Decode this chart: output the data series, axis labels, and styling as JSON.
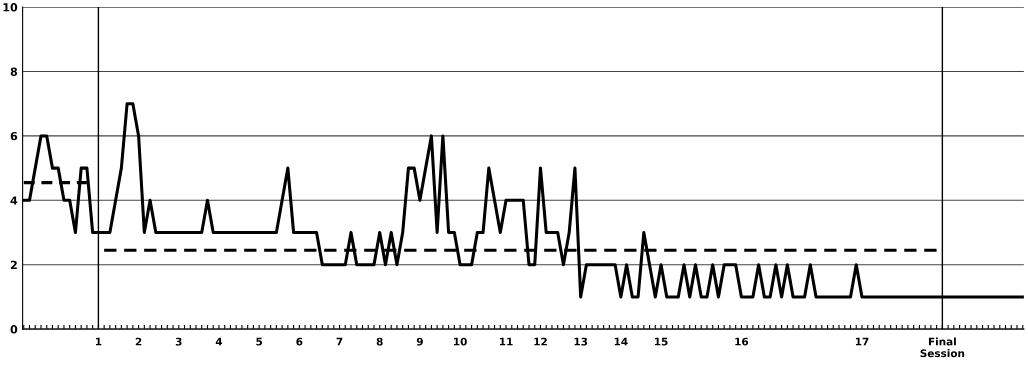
{
  "chart_data": {
    "type": "line",
    "categories": [
      null,
      null,
      null,
      null,
      null,
      null,
      null,
      null,
      null,
      null,
      null,
      null,
      null,
      "1",
      null,
      null,
      null,
      null,
      null,
      null,
      "2",
      null,
      null,
      null,
      null,
      null,
      null,
      "3",
      null,
      null,
      null,
      null,
      null,
      null,
      "4",
      null,
      null,
      null,
      null,
      null,
      null,
      "5",
      null,
      null,
      null,
      null,
      null,
      null,
      "6",
      null,
      null,
      null,
      null,
      null,
      null,
      "7",
      null,
      null,
      null,
      null,
      null,
      null,
      "8",
      null,
      null,
      null,
      null,
      null,
      null,
      "9",
      null,
      null,
      null,
      null,
      null,
      null,
      "10",
      null,
      null,
      null,
      null,
      null,
      null,
      null,
      "11",
      null,
      null,
      null,
      null,
      null,
      "12",
      null,
      null,
      null,
      null,
      null,
      null,
      "13",
      null,
      null,
      null,
      null,
      null,
      null,
      "14",
      null,
      null,
      null,
      null,
      null,
      null,
      "15",
      null,
      null,
      null,
      null,
      null,
      null,
      null,
      null,
      null,
      null,
      null,
      null,
      null,
      "16",
      null,
      null,
      null,
      null,
      null,
      null,
      null,
      null,
      null,
      null,
      null,
      null,
      null,
      null,
      null,
      null,
      null,
      null,
      null,
      null,
      "17",
      null,
      null,
      null,
      null,
      null,
      null,
      null,
      null,
      null,
      null,
      null,
      null,
      null,
      "Final\nSession",
      null,
      null,
      null,
      null,
      null,
      null,
      null,
      null,
      null,
      null,
      null,
      null,
      null,
      null
    ],
    "series": [
      {
        "color": "#000000",
        "line_style": "solid",
        "values": [
          4,
          4,
          5,
          6,
          6,
          5,
          5,
          4,
          4,
          3,
          5,
          5,
          3,
          3,
          3,
          3,
          4,
          5,
          7,
          7,
          6,
          3,
          4,
          3,
          3,
          3,
          3,
          3,
          3,
          3,
          3,
          3,
          4,
          3,
          3,
          3,
          3,
          3,
          3,
          3,
          3,
          3,
          3,
          3,
          3,
          4,
          5,
          3,
          3,
          3,
          3,
          3,
          2,
          2,
          2,
          2,
          2,
          3,
          2,
          2,
          2,
          2,
          3,
          2,
          3,
          2,
          3,
          5,
          5,
          4,
          5,
          6,
          3,
          6,
          3,
          3,
          2,
          2,
          2,
          3,
          3,
          5,
          4,
          3,
          4,
          4,
          4,
          4,
          2,
          2,
          5,
          3,
          3,
          3,
          2,
          3,
          5,
          1,
          2,
          2,
          2,
          2,
          2,
          2,
          1,
          2,
          1,
          1,
          3,
          2,
          1,
          2,
          1,
          1,
          1,
          2,
          1,
          2,
          1,
          1,
          2,
          1,
          2,
          2,
          2,
          1,
          1,
          1,
          2,
          1,
          1,
          2,
          1,
          2,
          1,
          1,
          1,
          2,
          1,
          1,
          1,
          1,
          1,
          1,
          1,
          2,
          1,
          1,
          1,
          1,
          1,
          1,
          1,
          1,
          1,
          1,
          1,
          1,
          1,
          1,
          1,
          1,
          1,
          1,
          1,
          1,
          1,
          1,
          1,
          1,
          1,
          1,
          1,
          1,
          1
        ]
      },
      {
        "color": "#000000",
        "line_style": "dashed",
        "values": [
          4.55,
          4.55,
          4.55,
          4.55,
          4.55,
          4.55,
          4.55,
          4.55,
          4.55,
          4.55,
          4.55,
          4.55,
          null,
          null,
          null,
          null,
          null,
          null,
          null,
          null,
          null,
          null,
          null,
          null,
          null,
          null,
          null,
          null,
          null,
          null,
          null,
          null,
          null,
          null,
          null,
          null,
          null,
          null,
          null,
          null,
          null,
          null,
          null,
          null,
          null,
          null,
          null,
          null,
          null,
          null,
          null,
          null,
          null,
          null,
          null,
          null,
          null,
          null,
          null,
          null,
          null,
          null,
          null,
          null,
          null,
          null,
          null,
          null,
          null,
          null,
          null,
          null,
          null,
          null,
          null,
          null,
          null,
          null,
          null,
          null,
          null,
          null,
          null,
          null,
          null,
          null,
          null,
          null,
          null,
          null,
          null,
          null,
          null,
          null,
          null,
          null,
          null,
          null,
          null,
          null,
          null,
          null,
          null,
          null,
          null,
          null,
          null,
          null,
          null,
          null,
          null,
          null,
          null,
          null,
          null,
          null,
          null,
          null,
          null,
          null,
          null,
          null,
          null,
          null,
          null,
          null,
          null,
          null,
          null,
          null,
          null,
          null,
          null,
          null,
          null,
          null,
          null,
          null,
          null,
          null,
          null,
          null,
          null,
          null,
          null,
          null,
          null,
          null,
          null,
          null,
          null,
          null,
          null,
          null,
          null,
          null,
          null,
          null,
          null,
          null,
          null,
          null,
          null,
          null,
          null,
          null,
          null,
          null,
          null,
          null,
          null,
          null,
          null,
          null,
          null
        ]
      },
      {
        "color": "#000000",
        "line_style": "dashed",
        "values": [
          null,
          null,
          null,
          null,
          null,
          null,
          null,
          null,
          null,
          null,
          null,
          null,
          null,
          null,
          2.45,
          2.45,
          2.45,
          2.45,
          2.45,
          2.45,
          2.45,
          2.45,
          2.45,
          2.45,
          2.45,
          2.45,
          2.45,
          2.45,
          2.45,
          2.45,
          2.45,
          2.45,
          2.45,
          2.45,
          2.45,
          2.45,
          2.45,
          2.45,
          2.45,
          2.45,
          2.45,
          2.45,
          2.45,
          2.45,
          2.45,
          2.45,
          2.45,
          2.45,
          2.45,
          2.45,
          2.45,
          2.45,
          2.45,
          2.45,
          2.45,
          2.45,
          2.45,
          2.45,
          2.45,
          2.45,
          2.45,
          2.45,
          2.45,
          2.45,
          2.45,
          2.45,
          2.45,
          2.45,
          2.45,
          2.45,
          2.45,
          2.45,
          2.45,
          2.45,
          2.45,
          2.45,
          2.45,
          2.45,
          2.45,
          2.45,
          2.45,
          2.45,
          2.45,
          2.45,
          2.45,
          2.45,
          2.45,
          2.45,
          2.45,
          2.45,
          2.45,
          2.45,
          2.45,
          2.45,
          2.45,
          2.45,
          2.45,
          2.45,
          2.45,
          2.45,
          2.45,
          2.45,
          2.45,
          2.45,
          2.45,
          2.45,
          2.45,
          2.45,
          2.45,
          2.45,
          2.45,
          2.45,
          2.45,
          2.45,
          2.45,
          2.45,
          2.45,
          2.45,
          2.45,
          2.45,
          2.45,
          2.45,
          2.45,
          2.45,
          2.45,
          2.45,
          2.45,
          2.45,
          2.45,
          2.45,
          2.45,
          2.45,
          2.45,
          2.45,
          2.45,
          2.45,
          2.45,
          2.45,
          2.45,
          2.45,
          2.45,
          2.45,
          2.45,
          2.45,
          2.45,
          2.45,
          2.45,
          2.45,
          2.45,
          2.45,
          2.45,
          2.45,
          2.45,
          2.45,
          2.45,
          2.45,
          2.45,
          2.45,
          2.45,
          2.45,
          null,
          null,
          null,
          null,
          null,
          null,
          null,
          null,
          null,
          null,
          null,
          null,
          null,
          null,
          null
        ]
      }
    ],
    "ylim": [
      0,
      10
    ],
    "yticks": [
      0,
      2,
      4,
      6,
      8,
      10
    ],
    "grid": "y",
    "legend": false,
    "marker": "none",
    "ref_lines": [
      {
        "axis": "x",
        "value": "1",
        "color": "#000000"
      },
      {
        "axis": "x",
        "value": "Final\nSession",
        "color": "#000000"
      }
    ]
  }
}
